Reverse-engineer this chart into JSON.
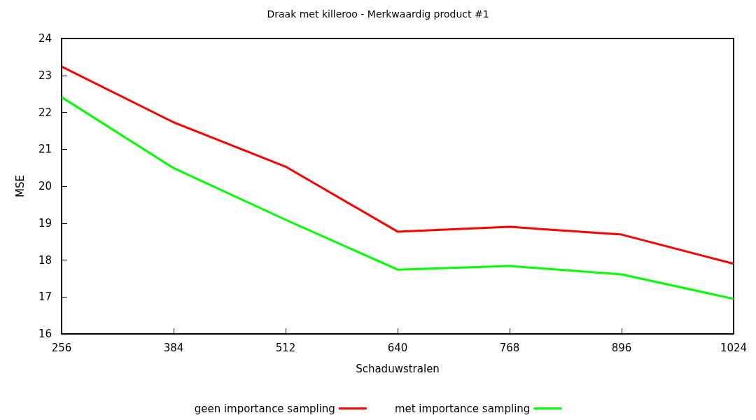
{
  "chart_data": {
    "type": "line",
    "title": "Draak met killeroo - Merkwaardig product #1",
    "xlabel": "Schaduwstralen",
    "ylabel": "MSE",
    "x": [
      256,
      384,
      512,
      640,
      768,
      896,
      1024
    ],
    "series": [
      {
        "name": "geen importance sampling",
        "color": "#ff0000",
        "values": [
          23.24,
          21.73,
          20.53,
          18.77,
          18.9,
          18.69,
          17.9
        ]
      },
      {
        "name": "met importance sampling",
        "color": "#00ff00",
        "values": [
          22.41,
          20.49,
          19.09,
          17.74,
          17.84,
          17.61,
          16.95
        ]
      }
    ],
    "xlim": [
      256,
      1024
    ],
    "xticks": [
      256,
      384,
      512,
      640,
      768,
      896,
      1024
    ],
    "ylim": [
      16,
      24
    ],
    "yticks": [
      16,
      17,
      18,
      19,
      20,
      21,
      22,
      23,
      24
    ],
    "grid": false,
    "legend": "bottom",
    "marker": "none",
    "line_style": "solid"
  }
}
